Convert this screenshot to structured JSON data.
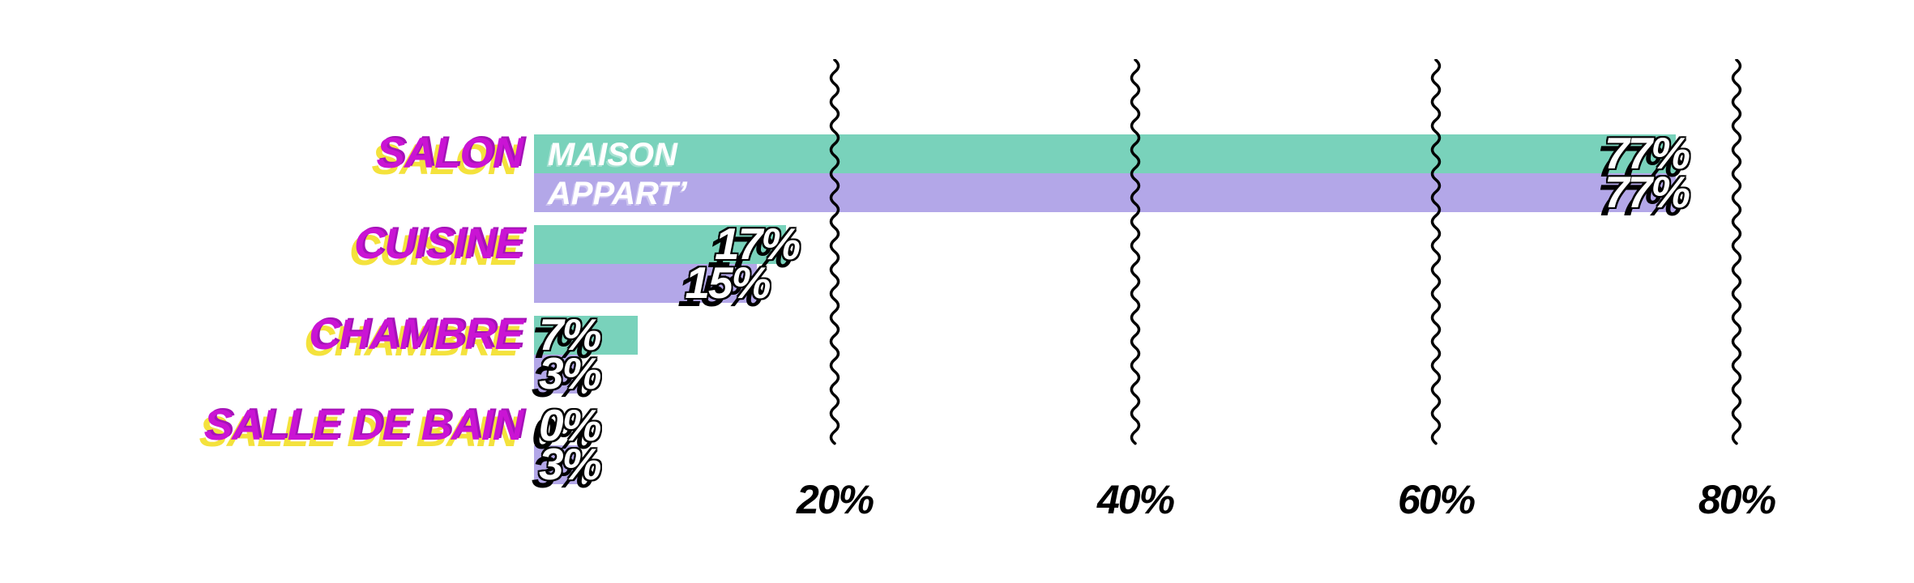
{
  "chart_data": {
    "type": "bar",
    "orientation": "horizontal",
    "title": "",
    "categories": [
      "SALON",
      "CUISINE",
      "CHAMBRE",
      "SALLE DE BAIN"
    ],
    "series": [
      {
        "name": "MAISON",
        "color": "#79d2bb",
        "values": [
          77,
          17,
          7,
          0
        ],
        "value_labels": [
          "77%",
          "17%",
          "7%",
          "0%"
        ]
      },
      {
        "name": "APPART’",
        "color": "#b3a7e8",
        "values": [
          77,
          15,
          3,
          3
        ],
        "value_labels": [
          "77%",
          "15%",
          "3%",
          "3%"
        ]
      }
    ],
    "x_axis": {
      "tick_labels": [
        "20%",
        "40%",
        "60%",
        "80%"
      ],
      "tick_values": [
        20,
        40,
        60,
        80
      ],
      "range": [
        0,
        85
      ],
      "gridline_style": "wavy-vertical"
    },
    "grid": true,
    "legend_position": "inside-first-bars"
  },
  "colors": {
    "maison_bar": "#79d2bb",
    "appart_bar": "#b3a7e8",
    "category_text": "#ca14d4",
    "category_shadow": "#f4e23c",
    "value_text": "#ffffff",
    "value_shadow": "#000000",
    "tick_text": "#000000",
    "background": "#ffffff"
  }
}
